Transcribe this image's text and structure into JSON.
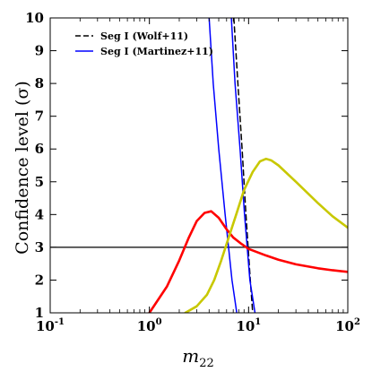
{
  "chart_data": {
    "type": "line",
    "xscale": "log",
    "xlim": [
      0.1,
      100
    ],
    "ylim": [
      1,
      10
    ],
    "xlabel": "m_22",
    "xlabel_main": "m",
    "xlabel_sub": "22",
    "ylabel": "Confidence level (σ)",
    "x_ticks": [
      {
        "value": 0.1,
        "base": "10",
        "exp": "-1"
      },
      {
        "value": 1,
        "base": "10",
        "exp": "0"
      },
      {
        "value": 10,
        "base": "10",
        "exp": "1"
      },
      {
        "value": 100,
        "base": "10",
        "exp": "2"
      }
    ],
    "y_ticks": [
      1,
      2,
      3,
      4,
      5,
      6,
      7,
      8,
      9,
      10
    ],
    "legend_position": "top-left",
    "legend": [
      {
        "label": "Seg I (Wolf+11)",
        "color": "#000000",
        "dash": "dashed"
      },
      {
        "label": "Seg I (Martinez+11)",
        "color": "#0000ff",
        "dash": "solid"
      }
    ],
    "hlines": [
      {
        "y": 3,
        "color": "#000000"
      }
    ],
    "series": [
      {
        "name": "Seg I (Wolf+11)",
        "color": "#000000",
        "dash": "dashed",
        "points": [
          [
            7.1,
            10
          ],
          [
            7.8,
            8
          ],
          [
            8.6,
            6
          ],
          [
            9.4,
            4
          ],
          [
            10.4,
            2
          ],
          [
            11.0,
            1
          ]
        ]
      },
      {
        "name": "Seg I (Martinez+11)",
        "color": "#0000ff",
        "dash": "solid",
        "outline": true,
        "boundary_left": [
          [
            4.0,
            10
          ],
          [
            4.4,
            8
          ],
          [
            5.0,
            6
          ],
          [
            5.8,
            4
          ],
          [
            6.8,
            2
          ],
          [
            7.6,
            1
          ]
        ],
        "boundary_right": [
          [
            6.7,
            10
          ],
          [
            7.3,
            8
          ],
          [
            8.2,
            6
          ],
          [
            9.1,
            4
          ],
          [
            10.3,
            2
          ],
          [
            11.6,
            1
          ]
        ]
      },
      {
        "color": "#ff0000",
        "dash": "solid",
        "points": [
          [
            1.0,
            1.0
          ],
          [
            1.5,
            1.8
          ],
          [
            2.0,
            2.6
          ],
          [
            2.5,
            3.3
          ],
          [
            3.0,
            3.8
          ],
          [
            3.6,
            4.05
          ],
          [
            4.2,
            4.1
          ],
          [
            5.0,
            3.9
          ],
          [
            6.0,
            3.55
          ],
          [
            7.0,
            3.3
          ],
          [
            8.5,
            3.1
          ],
          [
            10,
            2.95
          ],
          [
            15,
            2.75
          ],
          [
            20,
            2.62
          ],
          [
            30,
            2.48
          ],
          [
            50,
            2.36
          ],
          [
            70,
            2.3
          ],
          [
            100,
            2.25
          ]
        ]
      },
      {
        "color": "#c8c800",
        "dash": "solid",
        "points": [
          [
            2.3,
            1.0
          ],
          [
            3.0,
            1.2
          ],
          [
            3.8,
            1.55
          ],
          [
            4.5,
            2.0
          ],
          [
            5.3,
            2.6
          ],
          [
            6.3,
            3.3
          ],
          [
            7.5,
            4.0
          ],
          [
            9.0,
            4.75
          ],
          [
            11,
            5.3
          ],
          [
            13,
            5.62
          ],
          [
            15,
            5.7
          ],
          [
            17,
            5.65
          ],
          [
            20,
            5.5
          ],
          [
            30,
            5.0
          ],
          [
            50,
            4.35
          ],
          [
            70,
            3.95
          ],
          [
            100,
            3.6
          ]
        ]
      }
    ]
  }
}
